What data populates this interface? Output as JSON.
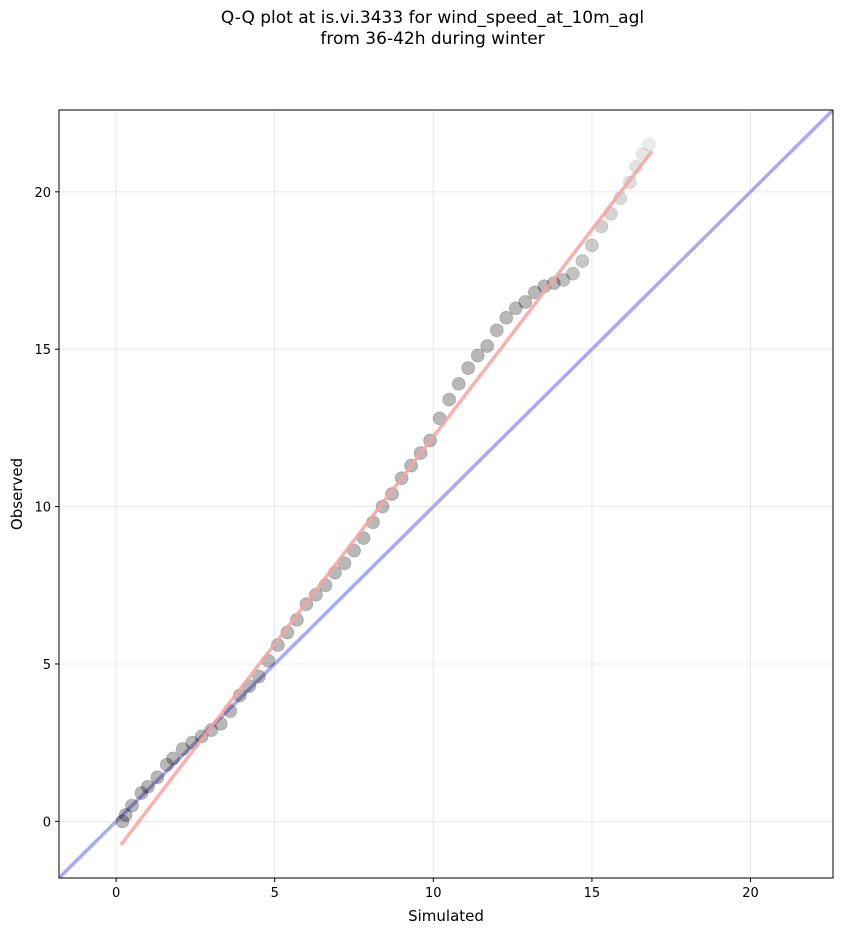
{
  "chart_data": {
    "type": "scatter",
    "title": [
      "Q-Q plot at is.vi.3433 for wind_speed_at_10m_agl",
      "from 36-42h during winter"
    ],
    "xlabel": "Simulated",
    "ylabel": "Observed",
    "xlim": [
      -1.8,
      22.6
    ],
    "ylim": [
      -1.8,
      22.6
    ],
    "xticks": [
      0,
      5,
      10,
      15,
      20
    ],
    "yticks": [
      0,
      5,
      10,
      15,
      20
    ],
    "grid": true,
    "reference_line": {
      "kind": "y = x",
      "color": "#aaaaf0"
    },
    "fit_line": {
      "x": [
        0.15,
        16.9
      ],
      "y": [
        -0.75,
        21.3
      ],
      "color": "#f4a3a3"
    },
    "points": {
      "x": [
        0.2,
        0.3,
        0.5,
        0.8,
        1.0,
        1.3,
        1.6,
        1.8,
        2.1,
        2.4,
        2.7,
        3.0,
        3.3,
        3.6,
        3.9,
        4.2,
        4.5,
        4.8,
        5.1,
        5.4,
        5.7,
        6.0,
        6.3,
        6.6,
        6.9,
        7.2,
        7.5,
        7.8,
        8.1,
        8.4,
        8.7,
        9.0,
        9.3,
        9.6,
        9.9,
        10.2,
        10.5,
        10.8,
        11.1,
        11.4,
        11.7,
        12.0,
        12.3,
        12.6,
        12.9,
        13.2,
        13.5,
        13.8,
        14.1,
        14.4,
        14.7,
        15.0,
        15.3,
        15.6,
        15.9,
        16.2,
        16.4,
        16.6,
        16.8
      ],
      "y": [
        0.0,
        0.2,
        0.5,
        0.9,
        1.1,
        1.4,
        1.8,
        2.0,
        2.3,
        2.5,
        2.7,
        2.9,
        3.1,
        3.5,
        4.0,
        4.3,
        4.6,
        5.1,
        5.6,
        6.0,
        6.4,
        6.9,
        7.2,
        7.5,
        7.9,
        8.2,
        8.6,
        9.0,
        9.5,
        10.0,
        10.4,
        10.9,
        11.3,
        11.7,
        12.1,
        12.8,
        13.4,
        13.9,
        14.4,
        14.8,
        15.1,
        15.6,
        16.0,
        16.3,
        16.5,
        16.8,
        17.0,
        17.1,
        17.2,
        17.4,
        17.8,
        18.3,
        18.9,
        19.3,
        19.8,
        20.3,
        20.8,
        21.2,
        21.5
      ],
      "color": "#000000"
    }
  }
}
